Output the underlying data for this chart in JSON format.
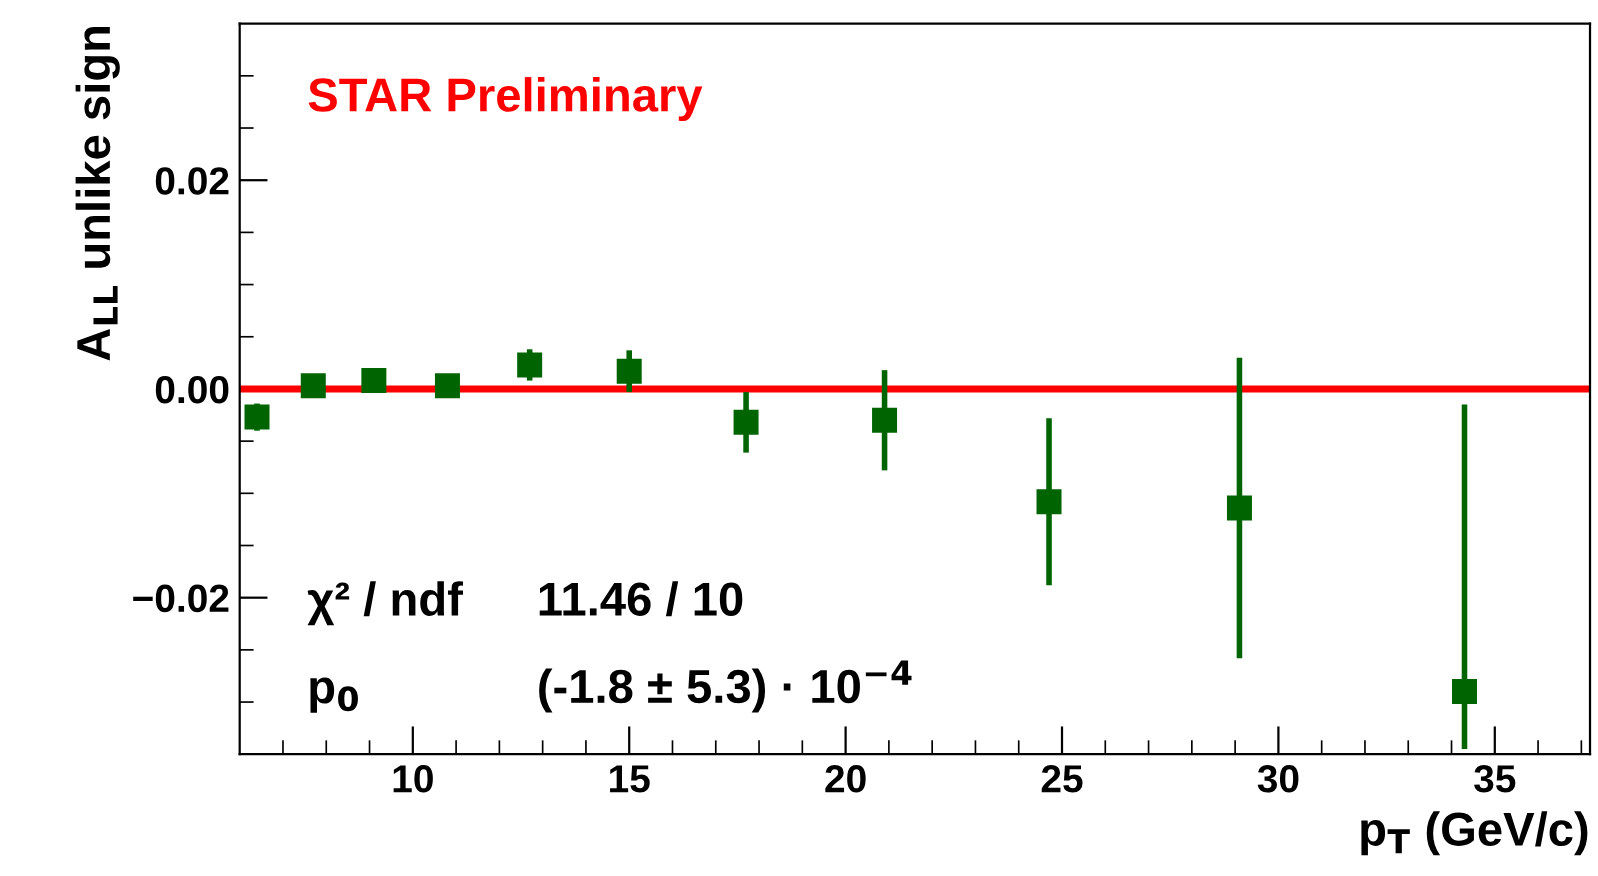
{
  "chart_data": {
    "type": "scatter",
    "xlabel": "p$_{T}$ (GeV/c)",
    "ylabel": "A$_{LL}$ unlike sign",
    "x": [
      6.4,
      7.7,
      9.1,
      10.8,
      12.7,
      15.0,
      17.7,
      20.9,
      24.7,
      29.1,
      34.3
    ],
    "series": [
      {
        "color": "#006400",
        "marker": "square",
        "values": [
          -0.0027,
          0.0003,
          0.0008,
          0.0003,
          0.0023,
          0.0017,
          -0.0032,
          -0.003,
          -0.0108,
          -0.0114,
          -0.029
        ],
        "errors": [
          0.0013,
          0.001,
          0.0005,
          0.001,
          0.0015,
          0.002,
          0.0029,
          0.0048,
          0.008,
          0.0144,
          [
            -0.0345,
            -0.0015
          ]
        ]
      },
      {
        "type": "line",
        "color": "#ff0000",
        "x": [
          6.0,
          37.2
        ],
        "values": [
          0,
          0
        ]
      }
    ],
    "xlim": [
      6.0,
      37.2
    ],
    "ylim": [
      -0.035,
      0.035
    ],
    "xticks": [
      {
        "value": 7,
        "label": null
      },
      {
        "value": 8,
        "label": null
      },
      {
        "value": 9,
        "label": null
      },
      10,
      {
        "value": 11,
        "label": null
      },
      {
        "value": 12,
        "label": null
      },
      {
        "value": 13,
        "label": null
      },
      {
        "value": 14,
        "label": null
      },
      15,
      {
        "value": 16,
        "label": null
      },
      {
        "value": 17,
        "label": null
      },
      {
        "value": 18,
        "label": null
      },
      {
        "value": 19,
        "label": null
      },
      20,
      {
        "value": 21,
        "label": null
      },
      {
        "value": 22,
        "label": null
      },
      {
        "value": 23,
        "label": null
      },
      {
        "value": 24,
        "label": null
      },
      25,
      {
        "value": 26,
        "label": null
      },
      {
        "value": 27,
        "label": null
      },
      {
        "value": 28,
        "label": null
      },
      {
        "value": 29,
        "label": null
      },
      30,
      {
        "value": 31,
        "label": null
      },
      {
        "value": 32,
        "label": null
      },
      {
        "value": 33,
        "label": null
      },
      {
        "value": 34,
        "label": null
      },
      35,
      {
        "value": 36,
        "label": null
      },
      {
        "value": 37,
        "label": null
      }
    ],
    "yticks": [
      {
        "value": -0.03,
        "label": null
      },
      {
        "value": -0.025,
        "label": null
      },
      {
        "value": -0.02,
        "label": "−0.02"
      },
      {
        "value": -0.015,
        "label": null
      },
      {
        "value": -0.01,
        "label": null
      },
      {
        "value": -0.005,
        "label": null
      },
      {
        "value": 0,
        "label": "0.00"
      },
      {
        "value": 0.005,
        "label": null
      },
      {
        "value": 0.01,
        "label": null
      },
      {
        "value": 0.015,
        "label": null
      },
      {
        "value": 0.02,
        "label": "0.02"
      },
      {
        "value": 0.025,
        "label": null
      },
      {
        "value": 0.03,
        "label": null
      }
    ],
    "grid": false,
    "legend": false,
    "annotations": [
      "STAR Preliminary",
      "χ² / ndf",
      "11.46 / 10",
      "p$_{0}$",
      "(-1.8 ± 5.3) · 10$^{−4}$"
    ]
  }
}
